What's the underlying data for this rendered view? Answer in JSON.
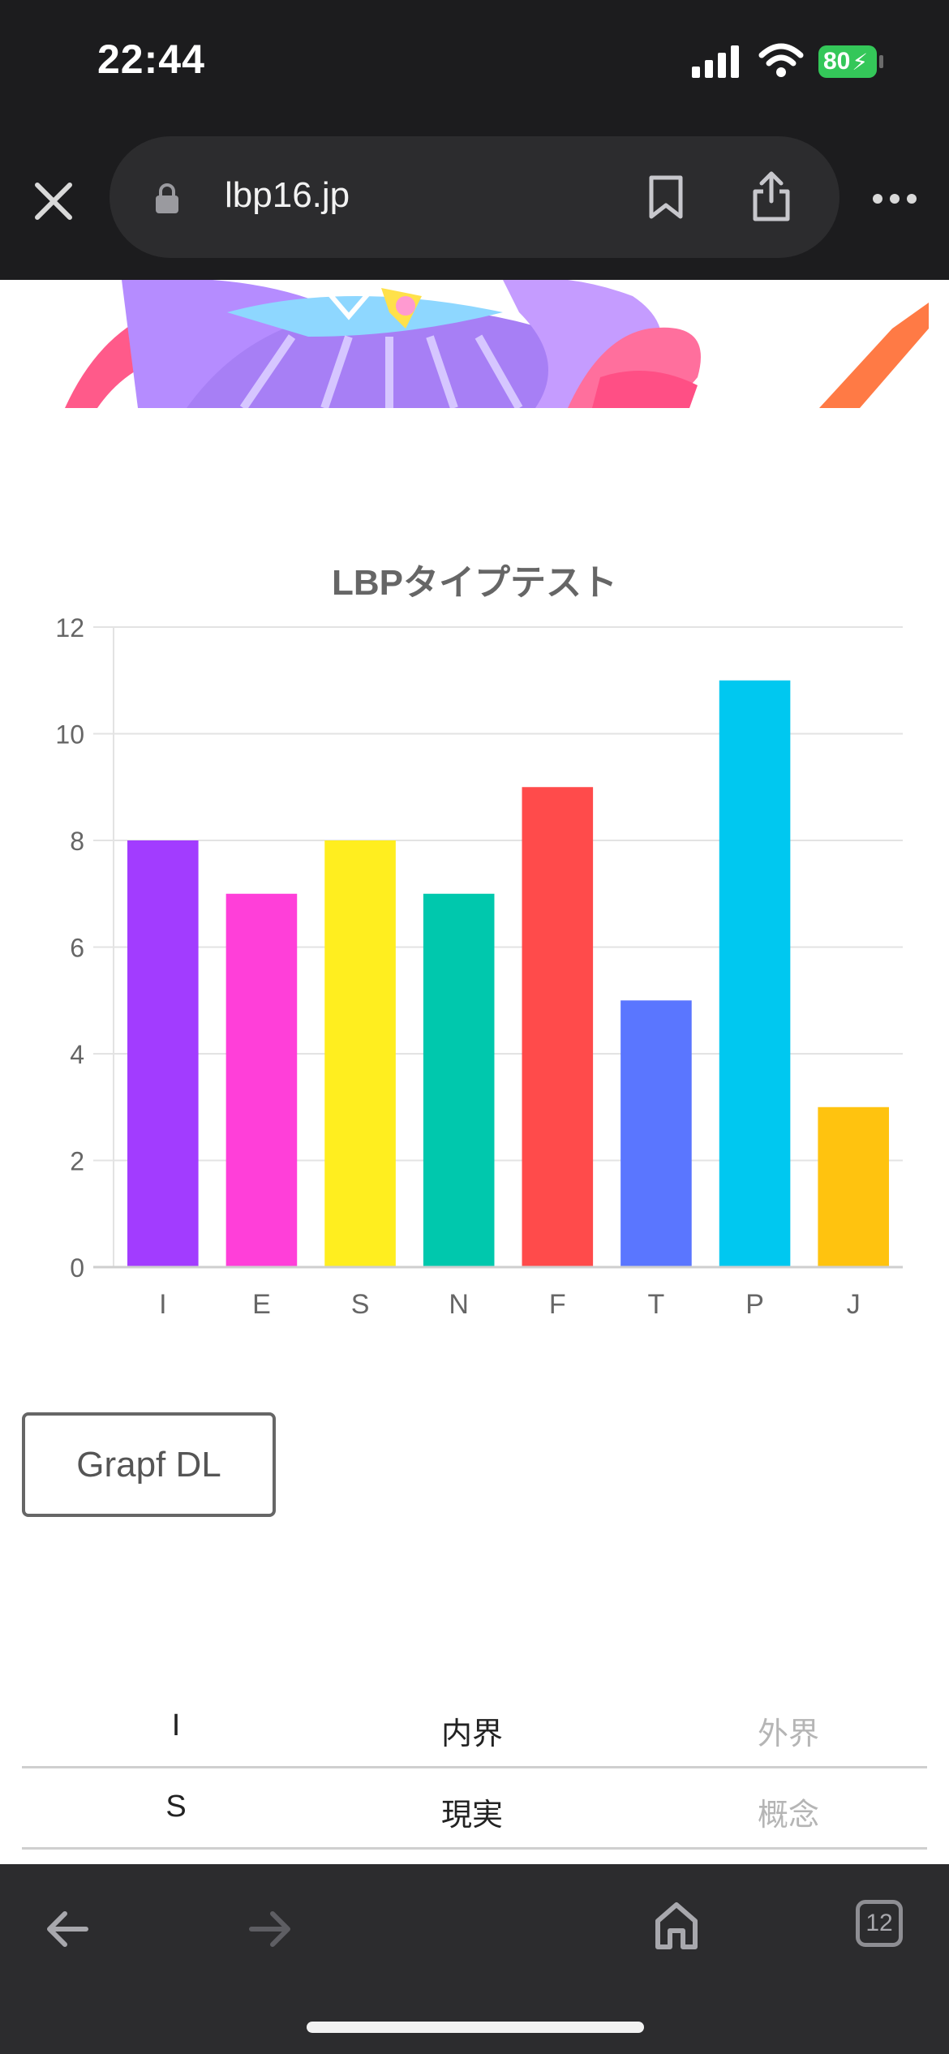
{
  "status_bar": {
    "time": "22:44",
    "battery": "80"
  },
  "browser": {
    "url": "lbp16.jp",
    "open_tabs": "12"
  },
  "chart_data": {
    "type": "bar",
    "title": "LBPタイプテスト",
    "categories": [
      "I",
      "E",
      "S",
      "N",
      "F",
      "T",
      "P",
      "J"
    ],
    "values": [
      8,
      7,
      8,
      7,
      9,
      5,
      11,
      3
    ],
    "colors": [
      "#a23cff",
      "#ff3fd9",
      "#ffee1f",
      "#00c8ad",
      "#ff4b4b",
      "#5a76ff",
      "#00c8f0",
      "#ffc30f"
    ],
    "ylim": [
      0,
      12
    ],
    "yticks": [
      0,
      2,
      4,
      6,
      8,
      10,
      12
    ],
    "grid": true,
    "xlabel": "",
    "ylabel": ""
  },
  "download_button": {
    "label": "Grapf DL"
  },
  "type_table": {
    "rows": [
      {
        "key": "I",
        "primary": "内界",
        "secondary": "外界"
      },
      {
        "key": "S",
        "primary": "現実",
        "secondary": "概念"
      }
    ]
  }
}
